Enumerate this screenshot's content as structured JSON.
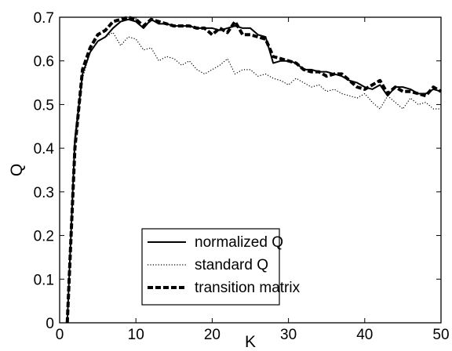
{
  "chart_data": {
    "type": "line",
    "xlabel": "K",
    "ylabel": "Q",
    "xlim": [
      0,
      50
    ],
    "ylim": [
      0,
      0.7
    ],
    "x_ticks": [
      "0",
      "10",
      "20",
      "30",
      "40",
      "50"
    ],
    "y_ticks": [
      "0",
      "0.1",
      "0.2",
      "0.3",
      "0.4",
      "0.5",
      "0.6",
      "0.7"
    ],
    "grid": false,
    "legend_position": "bottom-right",
    "series": [
      {
        "name": "normalized Q",
        "style": "solid",
        "color": "#000000",
        "x": [
          1,
          2,
          3,
          4,
          5,
          6,
          7,
          8,
          9,
          10,
          11,
          12,
          13,
          14,
          15,
          16,
          17,
          18,
          19,
          20,
          21,
          22,
          23,
          24,
          25,
          26,
          27,
          28,
          29,
          30,
          31,
          32,
          33,
          34,
          35,
          36,
          37,
          38,
          39,
          40,
          41,
          42,
          43,
          44,
          45,
          46,
          47,
          48,
          49,
          50
        ],
        "y": [
          0.0,
          0.42,
          0.57,
          0.62,
          0.645,
          0.655,
          0.675,
          0.69,
          0.695,
          0.69,
          0.675,
          0.695,
          0.685,
          0.685,
          0.68,
          0.68,
          0.68,
          0.675,
          0.675,
          0.675,
          0.67,
          0.675,
          0.68,
          0.675,
          0.675,
          0.66,
          0.655,
          0.595,
          0.6,
          0.6,
          0.595,
          0.58,
          0.58,
          0.575,
          0.575,
          0.57,
          0.565,
          0.555,
          0.55,
          0.54,
          0.535,
          0.545,
          0.52,
          0.54,
          0.54,
          0.535,
          0.525,
          0.525,
          0.535,
          0.53
        ]
      },
      {
        "name": "standard Q",
        "style": "dotted",
        "color": "#000000",
        "x": [
          1,
          2,
          3,
          4,
          5,
          6,
          7,
          8,
          9,
          10,
          11,
          12,
          13,
          14,
          15,
          16,
          17,
          18,
          19,
          20,
          21,
          22,
          23,
          24,
          25,
          26,
          27,
          28,
          29,
          30,
          31,
          32,
          33,
          34,
          35,
          36,
          37,
          38,
          39,
          40,
          41,
          42,
          43,
          44,
          45,
          46,
          47,
          48,
          49,
          50
        ],
        "y": [
          0.0,
          0.4,
          0.56,
          0.62,
          0.645,
          0.655,
          0.665,
          0.635,
          0.655,
          0.65,
          0.625,
          0.63,
          0.6,
          0.61,
          0.605,
          0.59,
          0.6,
          0.58,
          0.57,
          0.58,
          0.59,
          0.605,
          0.57,
          0.58,
          0.58,
          0.565,
          0.57,
          0.56,
          0.555,
          0.545,
          0.56,
          0.55,
          0.54,
          0.545,
          0.53,
          0.535,
          0.525,
          0.52,
          0.515,
          0.525,
          0.505,
          0.49,
          0.52,
          0.505,
          0.49,
          0.515,
          0.5,
          0.505,
          0.49,
          0.49
        ]
      },
      {
        "name": "transition matrix",
        "style": "dashed",
        "color": "#000000",
        "x": [
          1,
          2,
          3,
          4,
          5,
          6,
          7,
          8,
          9,
          10,
          11,
          12,
          13,
          14,
          15,
          16,
          17,
          18,
          19,
          20,
          21,
          22,
          23,
          24,
          25,
          26,
          27,
          28,
          29,
          30,
          31,
          32,
          33,
          34,
          35,
          36,
          37,
          38,
          39,
          40,
          41,
          42,
          43,
          44,
          45,
          46,
          47,
          48,
          49,
          50
        ],
        "y": [
          0.0,
          0.4,
          0.58,
          0.63,
          0.66,
          0.67,
          0.69,
          0.695,
          0.7,
          0.695,
          0.68,
          0.695,
          0.69,
          0.685,
          0.68,
          0.68,
          0.68,
          0.675,
          0.675,
          0.66,
          0.675,
          0.665,
          0.69,
          0.66,
          0.66,
          0.655,
          0.65,
          0.61,
          0.605,
          0.6,
          0.595,
          0.58,
          0.575,
          0.575,
          0.565,
          0.57,
          0.57,
          0.555,
          0.54,
          0.535,
          0.545,
          0.555,
          0.525,
          0.54,
          0.53,
          0.53,
          0.525,
          0.52,
          0.54,
          0.53
        ]
      }
    ]
  }
}
